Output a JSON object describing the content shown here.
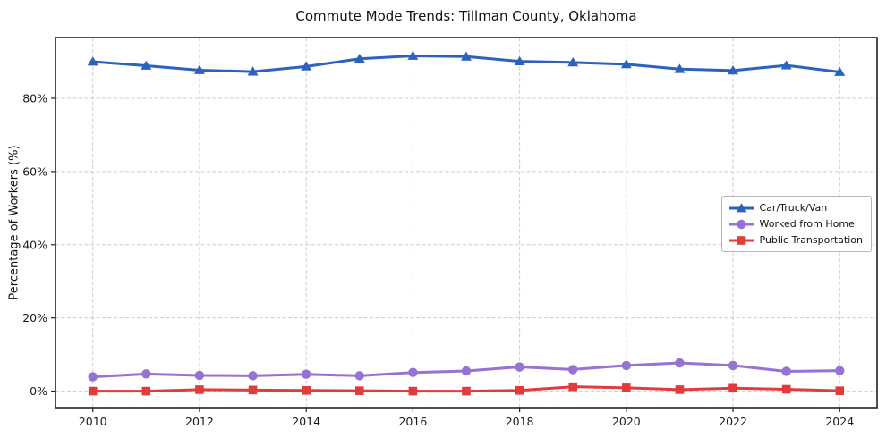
{
  "chart_data": {
    "type": "line",
    "title": "Commute Mode Trends: Tillman County, Oklahoma",
    "xlabel": "",
    "ylabel": "Percentage of Workers (%)",
    "x": [
      2010,
      2011,
      2012,
      2013,
      2014,
      2015,
      2016,
      2017,
      2018,
      2019,
      2020,
      2021,
      2022,
      2023,
      2024
    ],
    "series": [
      {
        "name": "Car/Truck/Van",
        "color": "#2b62be",
        "marker": "triangle",
        "values": [
          90.0,
          88.9,
          87.7,
          87.3,
          88.7,
          90.8,
          91.6,
          91.4,
          90.1,
          89.8,
          89.3,
          88.0,
          87.6,
          89.0,
          87.2
        ]
      },
      {
        "name": "Worked from Home",
        "color": "#9572d4",
        "marker": "circle",
        "values": [
          3.9,
          4.7,
          4.3,
          4.2,
          4.6,
          4.2,
          5.1,
          5.5,
          6.6,
          5.9,
          7.0,
          7.7,
          7.0,
          5.4,
          5.6
        ]
      },
      {
        "name": "Public Transportation",
        "color": "#e23b3b",
        "marker": "square",
        "values": [
          0.0,
          0.0,
          0.4,
          0.3,
          0.2,
          0.1,
          0.0,
          0.0,
          0.2,
          1.2,
          0.9,
          0.4,
          0.8,
          0.5,
          0.1
        ]
      }
    ],
    "xticks": {
      "values": [
        2010,
        2012,
        2014,
        2016,
        2018,
        2020,
        2022,
        2024
      ],
      "labels": [
        "2010",
        "2012",
        "2014",
        "2016",
        "2018",
        "2020",
        "2022",
        "2024"
      ]
    },
    "yticks": {
      "values": [
        0,
        20,
        40,
        60,
        80
      ],
      "labels": [
        "0%",
        "20%",
        "40%",
        "60%",
        "80%"
      ]
    },
    "xlim": [
      2009.3,
      2024.7
    ],
    "ylim": [
      -4.5,
      96.6
    ],
    "grid": true,
    "legend_position": "center right"
  }
}
